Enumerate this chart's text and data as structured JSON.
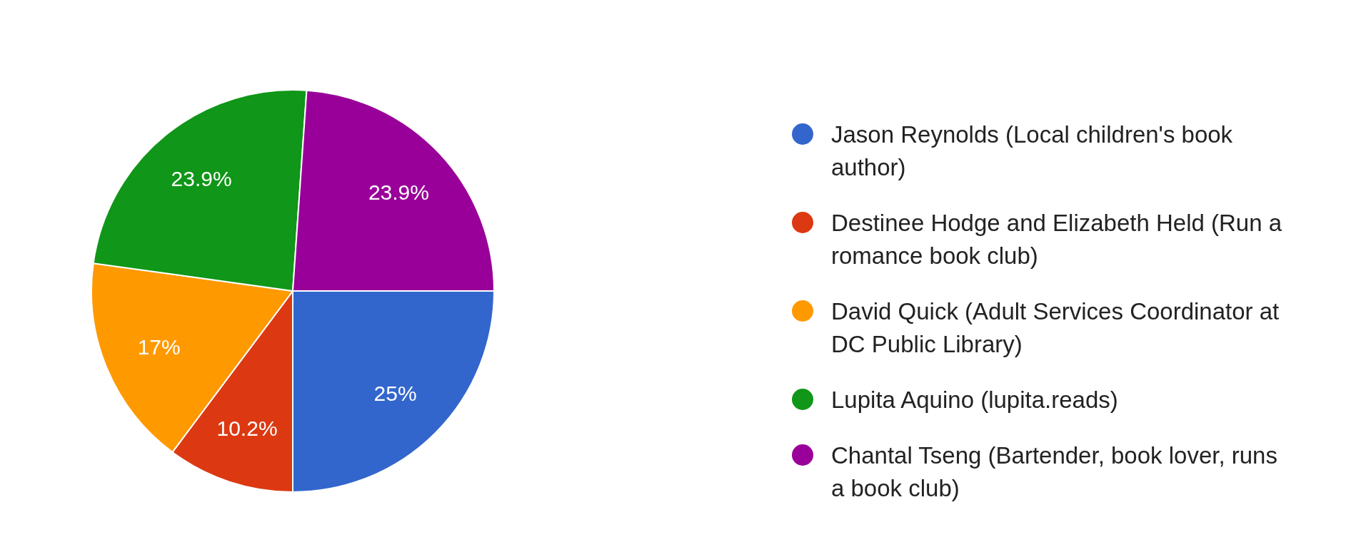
{
  "chart_data": {
    "type": "pie",
    "categories": [
      "Jason Reynolds (Local children's book author)",
      "Destinee Hodge and Elizabeth Held (Run a romance book club)",
      "David Quick (Adult Services Coordinator at DC Public Library)",
      "Lupita Aquino (lupita.reads)",
      "Chantal Tseng (Bartender, book lover, runs a book club)"
    ],
    "values": [
      25,
      10.2,
      17,
      23.9,
      23.9
    ],
    "colors": [
      "#3366cc",
      "#dc3912",
      "#ff9900",
      "#109618",
      "#990099"
    ],
    "value_labels": [
      "25%",
      "10.2%",
      "17%",
      "23.9%",
      "23.9%"
    ],
    "legend": "right"
  }
}
